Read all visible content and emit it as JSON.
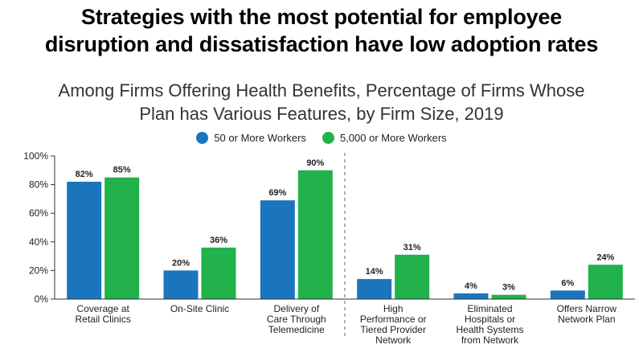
{
  "title_lines": [
    "Strategies with the most potential for employee",
    "disruption and dissatisfaction have low adoption rates"
  ],
  "subtitle_lines": [
    "Among Firms Offering Health Benefits, Percentage of Firms Whose",
    "Plan has Various Features, by Firm Size, 2019"
  ],
  "colors": {
    "series_small": "#1a75bc",
    "series_large": "#21b24b",
    "axis": "#333333",
    "divider": "#666666"
  },
  "chart_data": {
    "type": "bar",
    "title": "Strategies with the most potential for employee disruption and dissatisfaction have low adoption rates",
    "subtitle": "Among Firms Offering Health Benefits, Percentage of Firms Whose Plan has Various Features, by Firm Size, 2019",
    "categories": [
      [
        "Coverage at",
        "Retail Clinics"
      ],
      [
        "On-Site Clinic"
      ],
      [
        "Delivery of",
        "Care Through",
        "Telemedicine"
      ],
      [
        "High",
        "Performance or",
        "Tiered Provider",
        "Network"
      ],
      [
        "Eliminated",
        "Hospitals or",
        "Health Systems",
        "from Network"
      ],
      [
        "Offers Narrow",
        "Network Plan"
      ]
    ],
    "series": [
      {
        "name": "50 or More Workers",
        "values": [
          82,
          20,
          69,
          14,
          4,
          6
        ],
        "labels": [
          "82%",
          "20%",
          "69%",
          "14%",
          "4%",
          "6%"
        ]
      },
      {
        "name": "5,000 or More Workers",
        "values": [
          85,
          36,
          90,
          31,
          3,
          24
        ],
        "labels": [
          "85%",
          "36%",
          "90%",
          "31%",
          "3%",
          "24%"
        ]
      }
    ],
    "ylim": [
      0,
      100
    ],
    "yticks": [
      0,
      20,
      40,
      60,
      80,
      100
    ],
    "ytick_labels": [
      "0%",
      "20%",
      "40%",
      "60%",
      "80%",
      "100%"
    ],
    "divider_after_category": 2,
    "legend_position": "top"
  }
}
